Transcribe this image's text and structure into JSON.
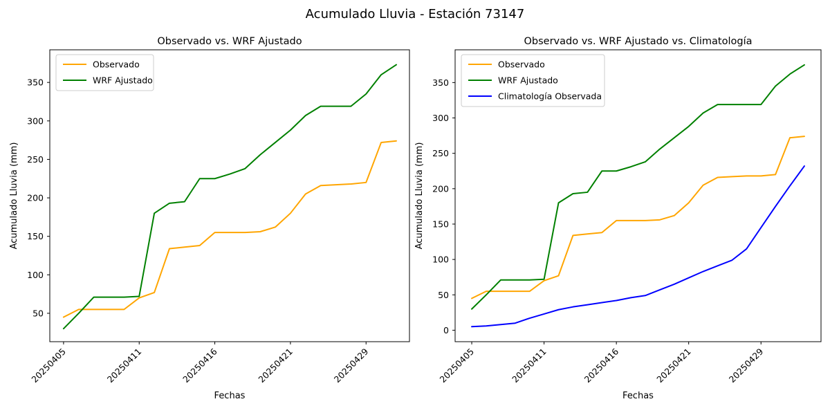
{
  "figure": {
    "title": "Acumulado Lluvia - Estación 73147",
    "background_color": "#ffffff",
    "text_color": "#000000",
    "accent_colors": {
      "observado": "#FFA500",
      "wrf_ajustado": "#008000",
      "climatologia": "#0000FF"
    }
  },
  "chart_data": [
    {
      "type": "line",
      "title": "Observado vs. WRF Ajustado",
      "xlabel": "Fechas",
      "ylabel": "Acumulado Lluvia (mm)",
      "x_tick_positions": [
        0,
        5,
        10,
        15,
        20
      ],
      "x_tick_labels": [
        "20250405",
        "20250411",
        "20250416",
        "20250421",
        "20250429"
      ],
      "x_tick_rotation": 45,
      "y_ticks": [
        50,
        100,
        150,
        200,
        250,
        300,
        350
      ],
      "xlim": [
        -0.91,
        22.87
      ],
      "ylim": [
        13.1,
        392.4
      ],
      "grid": false,
      "legend_position": "upper left",
      "series": [
        {
          "name": "Observado",
          "color": "#FFA500",
          "values": [
            45,
            55,
            55,
            55,
            55,
            70,
            77,
            134,
            136,
            138,
            155,
            155,
            155,
            156,
            162,
            180,
            205,
            216,
            217,
            218,
            220,
            272,
            274
          ]
        },
        {
          "name": "WRF Ajustado",
          "color": "#008000",
          "values": [
            30,
            50,
            71,
            71,
            71,
            72,
            180,
            193,
            195,
            225,
            225,
            231,
            238,
            256,
            272,
            288,
            307,
            319,
            319,
            319,
            335,
            360,
            373
          ]
        }
      ]
    },
    {
      "type": "line",
      "title": "Observado vs. WRF Ajustado vs. Climatología",
      "xlabel": "Fechas",
      "ylabel": "Acumulado Lluvia (mm)",
      "x_tick_positions": [
        0,
        5,
        10,
        15,
        20
      ],
      "x_tick_labels": [
        "20250405",
        "20250411",
        "20250416",
        "20250421",
        "20250429"
      ],
      "x_tick_rotation": 45,
      "y_ticks": [
        0,
        50,
        100,
        150,
        200,
        250,
        300,
        350
      ],
      "xlim": [
        -1.15,
        24.15
      ],
      "ylim": [
        -16.2,
        396.3
      ],
      "grid": false,
      "legend_position": "upper left",
      "series": [
        {
          "name": "Observado",
          "color": "#FFA500",
          "values": [
            45,
            55,
            55,
            55,
            55,
            70,
            77,
            134,
            136,
            138,
            155,
            155,
            155,
            156,
            162,
            180,
            205,
            216,
            217,
            218,
            218,
            220,
            272,
            274
          ]
        },
        {
          "name": "WRF Ajustado",
          "color": "#008000",
          "values": [
            30,
            50,
            71,
            71,
            71,
            72,
            180,
            193,
            195,
            225,
            225,
            231,
            238,
            256,
            272,
            288,
            307,
            319,
            319,
            319,
            319,
            345,
            362,
            375
          ]
        },
        {
          "name": "Climatología Observada",
          "color": "#0000FF",
          "values": [
            5,
            6,
            8,
            10,
            17,
            23,
            29,
            33,
            36,
            39,
            42,
            46,
            49,
            57,
            65,
            74,
            83,
            91,
            99,
            115,
            145,
            175,
            204,
            232
          ]
        }
      ]
    }
  ]
}
